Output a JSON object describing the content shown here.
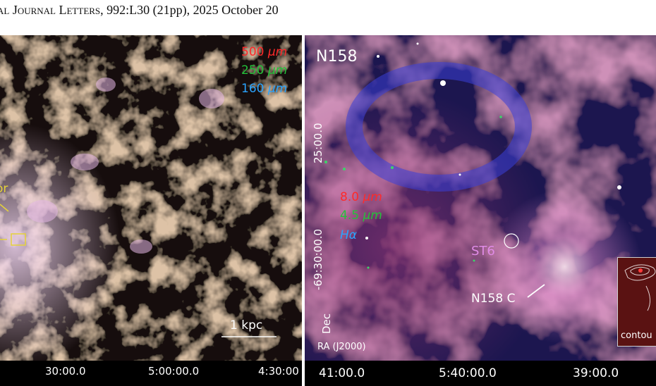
{
  "header": {
    "journal_smallcaps": "al Journal Letters",
    "citation": ", 992:L30 (21pp), 2025 October 20"
  },
  "left_panel": {
    "wavelengths": [
      {
        "value": "500",
        "unit": "μm"
      },
      {
        "value": "250",
        "unit": "μm"
      },
      {
        "value": "160",
        "unit": "μm"
      }
    ],
    "fragment_label_top": "or",
    "scale_bar_label": "1 kpc",
    "ra_ticks": [
      "30:00.0",
      "5:00:00.0",
      "4:30:00"
    ],
    "colors": {
      "red": "#ff2a2a",
      "green": "#23c23a",
      "blue": "#2aa4ff",
      "yellow_marker": "#e5d23a"
    }
  },
  "right_panel": {
    "field_name": "N158",
    "wavelengths": [
      {
        "value": "8.0",
        "unit": "μm"
      },
      {
        "value": "4.5",
        "unit": "μm"
      },
      {
        "value": "",
        "unit": "Hα"
      }
    ],
    "source_label": "ST6",
    "region_label": "N158 C",
    "dec_ticks": [
      "25:00.0",
      "-69:30:00.0"
    ],
    "dec_axis_label": "Dec",
    "ra_axis_label": "RA (J2000)",
    "ra_ticks": [
      "41:00.0",
      "5:40:00.0",
      "39:00.0"
    ],
    "inset_label": "contou",
    "colors": {
      "st6": "#e08be6"
    }
  }
}
